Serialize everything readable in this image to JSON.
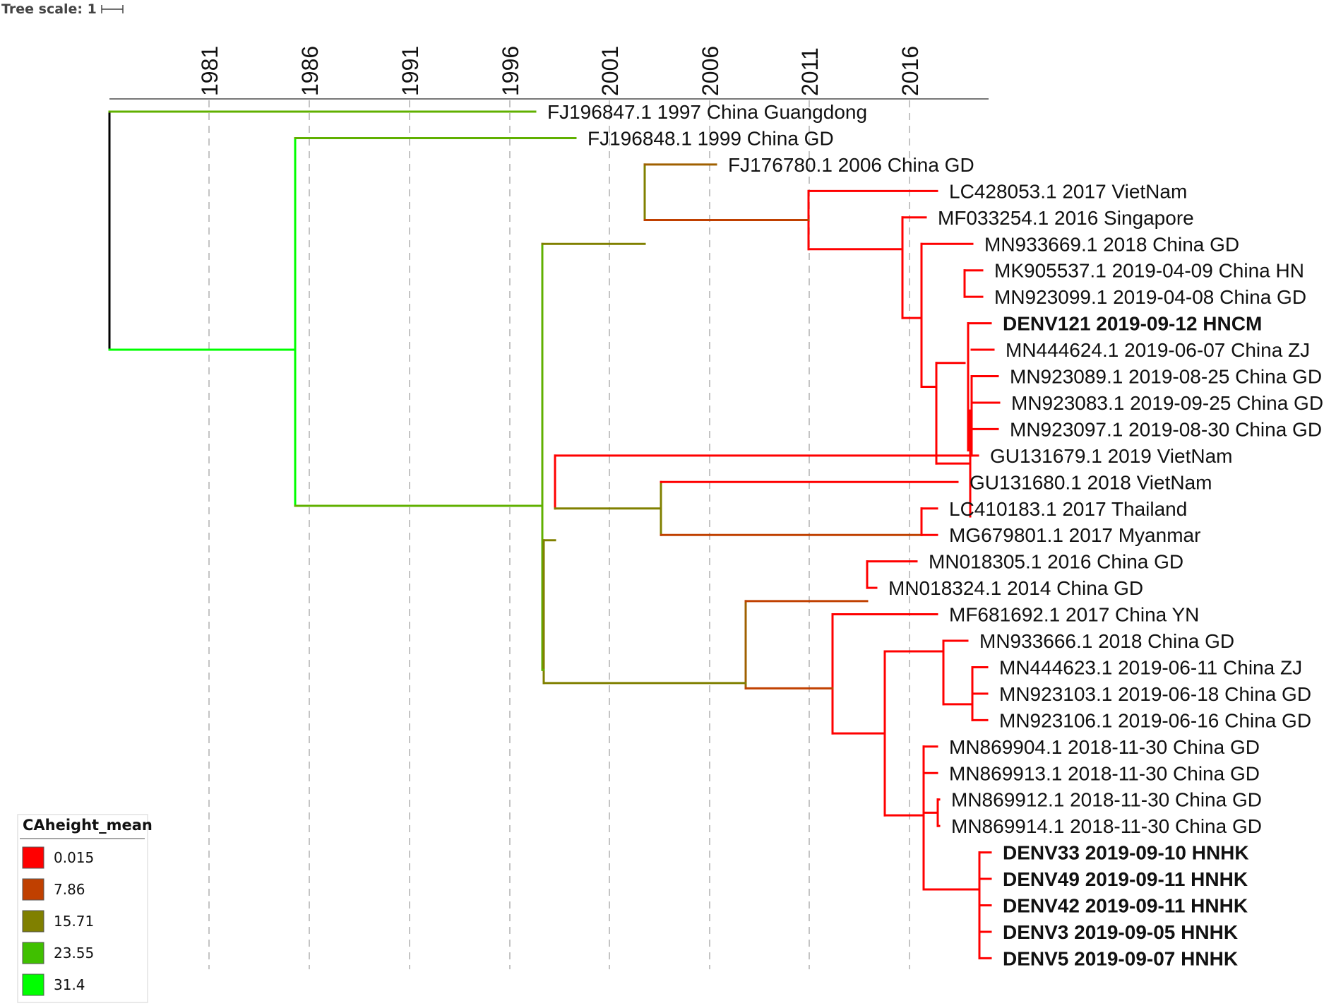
{
  "tree_scale": {
    "label": "Tree scale: 1"
  },
  "axis": {
    "ticks": [
      "1981",
      "1986",
      "1991",
      "1996",
      "2001",
      "2006",
      "2011",
      "2016"
    ]
  },
  "taxa": [
    {
      "label": "FJ196847.1 1997 China Guangdong",
      "bold": false
    },
    {
      "label": "FJ196848.1 1999 China GD",
      "bold": false
    },
    {
      "label": "FJ176780.1 2006 China GD",
      "bold": false
    },
    {
      "label": "LC428053.1 2017 VietNam",
      "bold": false
    },
    {
      "label": "MF033254.1 2016 Singapore",
      "bold": false
    },
    {
      "label": "MN933669.1 2018 China GD",
      "bold": false
    },
    {
      "label": "MK905537.1 2019-04-09 China HN",
      "bold": false
    },
    {
      "label": "MN923099.1 2019-04-08 China GD",
      "bold": false
    },
    {
      "label": "DENV121 2019-09-12 HNCM",
      "bold": true
    },
    {
      "label": "MN444624.1 2019-06-07 China ZJ",
      "bold": false
    },
    {
      "label": "MN923089.1 2019-08-25 China GD",
      "bold": false
    },
    {
      "label": "MN923083.1 2019-09-25 China GD",
      "bold": false
    },
    {
      "label": "MN923097.1 2019-08-30 China GD",
      "bold": false
    },
    {
      "label": "GU131679.1 2019 VietNam",
      "bold": false
    },
    {
      "label": "GU131680.1 2018 VietNam",
      "bold": false
    },
    {
      "label": "LC410183.1 2017 Thailand",
      "bold": false
    },
    {
      "label": "MG679801.1 2017 Myanmar",
      "bold": false
    },
    {
      "label": "MN018305.1 2016 China GD",
      "bold": false
    },
    {
      "label": "MN018324.1 2014 China GD",
      "bold": false
    },
    {
      "label": "MF681692.1 2017 China YN",
      "bold": false
    },
    {
      "label": "MN933666.1 2018 China GD",
      "bold": false
    },
    {
      "label": "MN444623.1 2019-06-11 China ZJ",
      "bold": false
    },
    {
      "label": "MN923103.1 2019-06-18 China GD",
      "bold": false
    },
    {
      "label": "MN923106.1 2019-06-16 China GD",
      "bold": false
    },
    {
      "label": "MN869904.1 2018-11-30 China GD",
      "bold": false
    },
    {
      "label": "MN869913.1 2018-11-30 China GD",
      "bold": false
    },
    {
      "label": "MN869912.1 2018-11-30 China GD",
      "bold": false
    },
    {
      "label": "MN869914.1 2018-11-30 China GD",
      "bold": false
    },
    {
      "label": "DENV33 2019-09-10 HNHK",
      "bold": true
    },
    {
      "label": "DENV49 2019-09-11 HNHK",
      "bold": true
    },
    {
      "label": "DENV42 2019-09-11 HNHK",
      "bold": true
    },
    {
      "label": "DENV3 2019-09-05 HNHK",
      "bold": true
    },
    {
      "label": "DENV5 2019-09-07 HNHK",
      "bold": true
    }
  ],
  "legend": {
    "title": "CAheight_mean",
    "items": [
      {
        "value": "0.015",
        "color": "#ff0000"
      },
      {
        "value": "7.86",
        "color": "#c04000"
      },
      {
        "value": "15.71",
        "color": "#808000"
      },
      {
        "value": "23.55",
        "color": "#40c000"
      },
      {
        "value": "31.4",
        "color": "#00ff00"
      }
    ]
  },
  "colors": {
    "root": "#000000",
    "bright_green": "#00ff00",
    "green": "#40c000",
    "mid_green": "#60b000",
    "olive": "#808000",
    "brown": "#a06000",
    "rust": "#c04000",
    "red": "#ff0000",
    "grid": "#b0b0b0"
  }
}
